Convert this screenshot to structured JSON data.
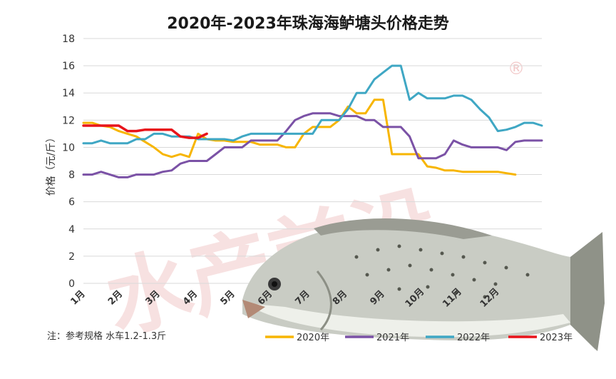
{
  "chart_data": {
    "type": "line",
    "title": "2020年-2023年珠海海鲈塘头价格走势",
    "ylabel": "价格（元/斤）",
    "xlabel": "",
    "ylim": [
      0,
      18
    ],
    "yticks": [
      0,
      2,
      4,
      6,
      8,
      10,
      12,
      14,
      16,
      18
    ],
    "x_tick_labels": [
      "1月",
      "2月",
      "3月",
      "4月",
      "5月",
      "6月",
      "7月",
      "8月",
      "9月",
      "10月",
      "11月",
      "12月"
    ],
    "grid": "horizontal",
    "legend_position": "bottom-right",
    "note": "注：参考规格  水车1.2-1.3斤",
    "watermark": "水产前沿",
    "series": [
      {
        "name": "2020年",
        "color": "#f7b500",
        "values": [
          11.8,
          11.8,
          11.6,
          11.5,
          11.2,
          11.0,
          10.8,
          10.4,
          10.0,
          9.5,
          9.3,
          9.5,
          9.3,
          11.0,
          10.6,
          10.5,
          10.5,
          10.4,
          10.4,
          10.4,
          10.2,
          10.2,
          10.2,
          10.0,
          10.0,
          11.0,
          11.5,
          11.5,
          11.5,
          12.0,
          13.0,
          12.5,
          12.5,
          13.5,
          13.5,
          9.5,
          9.5,
          9.5,
          9.5,
          8.6,
          8.5,
          8.3,
          8.3,
          8.2,
          8.2,
          8.2,
          8.2,
          8.2,
          8.1,
          8.0
        ]
      },
      {
        "name": "2021年",
        "color": "#7b52a6",
        "values": [
          8.0,
          8.0,
          8.2,
          8.0,
          7.8,
          7.8,
          8.0,
          8.0,
          8.0,
          8.2,
          8.3,
          8.8,
          9.0,
          9.0,
          9.0,
          9.5,
          10.0,
          10.0,
          10.0,
          10.5,
          10.5,
          10.5,
          10.5,
          11.2,
          12.0,
          12.3,
          12.5,
          12.5,
          12.5,
          12.3,
          12.3,
          12.3,
          12.0,
          12.0,
          11.5,
          11.5,
          11.5,
          10.8,
          9.2,
          9.2,
          9.2,
          9.5,
          10.5,
          10.2,
          10.0,
          10.0,
          10.0,
          10.0,
          9.8,
          10.4,
          10.5,
          10.5,
          10.5
        ]
      },
      {
        "name": "2022年",
        "color": "#3fa7c4",
        "values": [
          10.3,
          10.3,
          10.5,
          10.3,
          10.3,
          10.3,
          10.6,
          10.6,
          11.0,
          11.0,
          10.8,
          10.8,
          10.8,
          10.6,
          10.6,
          10.6,
          10.6,
          10.5,
          10.8,
          11.0,
          11.0,
          11.0,
          11.0,
          11.0,
          11.0,
          11.0,
          11.0,
          12.0,
          12.0,
          12.0,
          12.8,
          14.0,
          14.0,
          15.0,
          15.5,
          16.0,
          16.0,
          13.5,
          14.0,
          13.6,
          13.6,
          13.6,
          13.8,
          13.8,
          13.5,
          12.8,
          12.2,
          11.2,
          11.3,
          11.5,
          11.8,
          11.8,
          11.6
        ]
      },
      {
        "name": "2023年",
        "color": "#e8141b",
        "values": [
          11.6,
          11.6,
          11.6,
          11.6,
          11.6,
          11.2,
          11.2,
          11.3,
          11.3,
          11.3,
          11.3,
          10.8,
          10.7,
          10.7,
          11.0
        ]
      }
    ]
  }
}
